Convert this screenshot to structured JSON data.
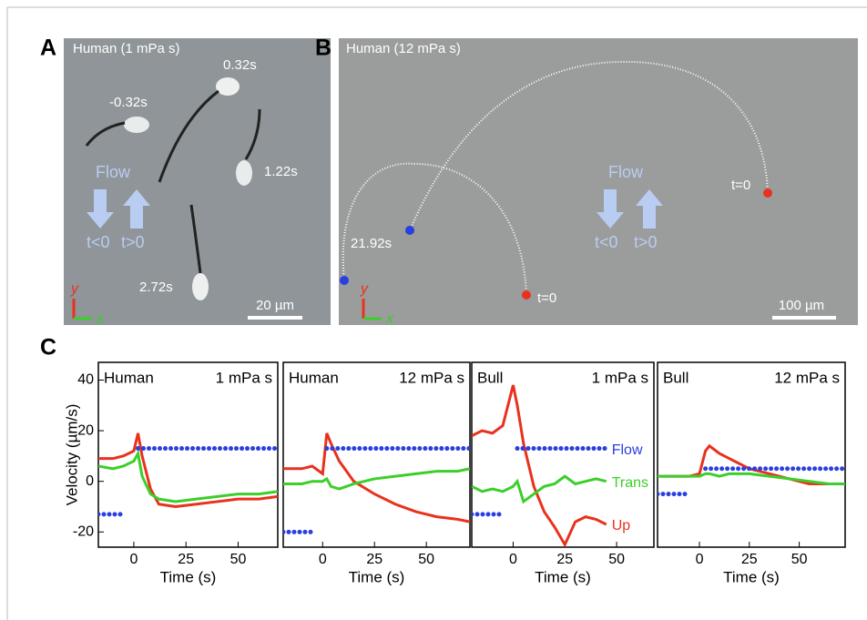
{
  "panels": {
    "A": {
      "letter": "A",
      "caption": "Human (1 mPa s)",
      "times": [
        "0.32s",
        "-0.32s",
        "1.22s",
        "2.72s"
      ],
      "flow": "Flow",
      "t_before": "t<0",
      "t_after": "t>0",
      "axis_y": "y",
      "axis_x": "x",
      "scale": "20 µm"
    },
    "B": {
      "letter": "B",
      "caption": "Human (12 mPa s)",
      "times": [
        "t=0",
        "21.92s",
        "t=0"
      ],
      "flow": "Flow",
      "t_before": "t<0",
      "t_after": "t>0",
      "axis_y": "y",
      "axis_x": "x",
      "scale": "100 µm"
    },
    "C": {
      "letter": "C"
    }
  },
  "chart_data": [
    {
      "type": "line",
      "title": "Human",
      "subtitle": "1 mPa s",
      "ylabel": "Velocity  (µm/s)",
      "xlabel": "Time (s)",
      "x": [
        -17,
        -10,
        -5,
        0,
        2,
        4,
        8,
        12,
        20,
        30,
        40,
        50,
        60,
        69
      ],
      "series": [
        {
          "color": "#e8321e",
          "values": [
            9,
            9,
            10,
            12,
            19,
            10,
            -3,
            -9,
            -10,
            -9,
            -8,
            -7,
            -7,
            -6
          ]
        },
        {
          "color": "#3ccf2a",
          "values": [
            6,
            5,
            6,
            8,
            11,
            2,
            -5,
            -7,
            -8,
            -7,
            -6,
            -5,
            -5,
            -4
          ]
        },
        {
          "color": "#2a3fe0",
          "line_style": "dotted",
          "values": [
            -13,
            -13,
            -13,
            null,
            13,
            13,
            13,
            13,
            13,
            13,
            13,
            13,
            13,
            13
          ]
        }
      ],
      "xlim": [
        -17,
        69
      ],
      "ylim": [
        -26,
        47
      ],
      "xticks": [
        0,
        25,
        50
      ],
      "yticks": [
        -20,
        0,
        20,
        40
      ]
    },
    {
      "type": "line",
      "title": "Human",
      "subtitle": "12 mPa s",
      "xlabel": "Time (s)",
      "x": [
        -19,
        -10,
        -5,
        0,
        2,
        4,
        8,
        15,
        25,
        35,
        45,
        55,
        65,
        71
      ],
      "series": [
        {
          "color": "#e8321e",
          "values": [
            5,
            5,
            6,
            3,
            19,
            15,
            8,
            0,
            -5,
            -9,
            -12,
            -14,
            -15,
            -16
          ]
        },
        {
          "color": "#3ccf2a",
          "values": [
            -1,
            -1,
            0,
            0,
            1,
            -2,
            -3,
            -1,
            1,
            2,
            3,
            4,
            4,
            5
          ]
        },
        {
          "color": "#2a3fe0",
          "line_style": "dotted",
          "values": [
            -20,
            -20,
            -20,
            null,
            13,
            13,
            13,
            13,
            13,
            13,
            13,
            13,
            13,
            13
          ]
        }
      ],
      "xlim": [
        -19,
        71
      ],
      "ylim": [
        -26,
        47
      ],
      "xticks": [
        0,
        25,
        50
      ]
    },
    {
      "type": "line",
      "title": "Bull",
      "subtitle": "1 mPa s",
      "xlabel": "Time (s)",
      "x": [
        -20,
        -15,
        -10,
        -5,
        0,
        2,
        5,
        10,
        15,
        20,
        25,
        30,
        35,
        40,
        45
      ],
      "series": [
        {
          "name": "Up",
          "color": "#e8321e",
          "values": [
            18,
            20,
            19,
            22,
            38,
            30,
            15,
            -2,
            -12,
            -18,
            -25,
            -16,
            -14,
            -15,
            -17
          ]
        },
        {
          "name": "Trans",
          "color": "#3ccf2a",
          "values": [
            -2,
            -4,
            -3,
            -4,
            -2,
            0,
            -8,
            -5,
            -2,
            -1,
            2,
            -1,
            0,
            1,
            0
          ]
        },
        {
          "name": "Flow",
          "color": "#2a3fe0",
          "line_style": "dotted",
          "values": [
            -13,
            -13,
            -13,
            -13,
            null,
            13,
            13,
            13,
            13,
            13,
            13,
            13,
            13,
            13,
            13
          ]
        }
      ],
      "xlim": [
        -20,
        68
      ],
      "ylim": [
        -26,
        47
      ],
      "xticks": [
        0,
        25,
        50
      ]
    },
    {
      "type": "line",
      "title": "Bull",
      "subtitle": "12 mPa s",
      "xlabel": "Time (s)",
      "x": [
        -21,
        -15,
        -5,
        0,
        3,
        5,
        10,
        15,
        25,
        35,
        45,
        55,
        65,
        73
      ],
      "series": [
        {
          "color": "#e8321e",
          "values": [
            2,
            2,
            2,
            3,
            12,
            14,
            11,
            9,
            5,
            3,
            1,
            -1,
            -1,
            -1
          ]
        },
        {
          "color": "#3ccf2a",
          "values": [
            2,
            2,
            2,
            2,
            3,
            3,
            2,
            3,
            3,
            2,
            1,
            0,
            -1,
            -1
          ]
        },
        {
          "color": "#2a3fe0",
          "line_style": "dotted",
          "values": [
            -5,
            -5,
            -5,
            null,
            5,
            5,
            5,
            5,
            5,
            5,
            5,
            5,
            5,
            5
          ]
        }
      ],
      "xlim": [
        -21,
        73
      ],
      "ylim": [
        -26,
        47
      ],
      "xticks": [
        0,
        25,
        50
      ]
    }
  ]
}
